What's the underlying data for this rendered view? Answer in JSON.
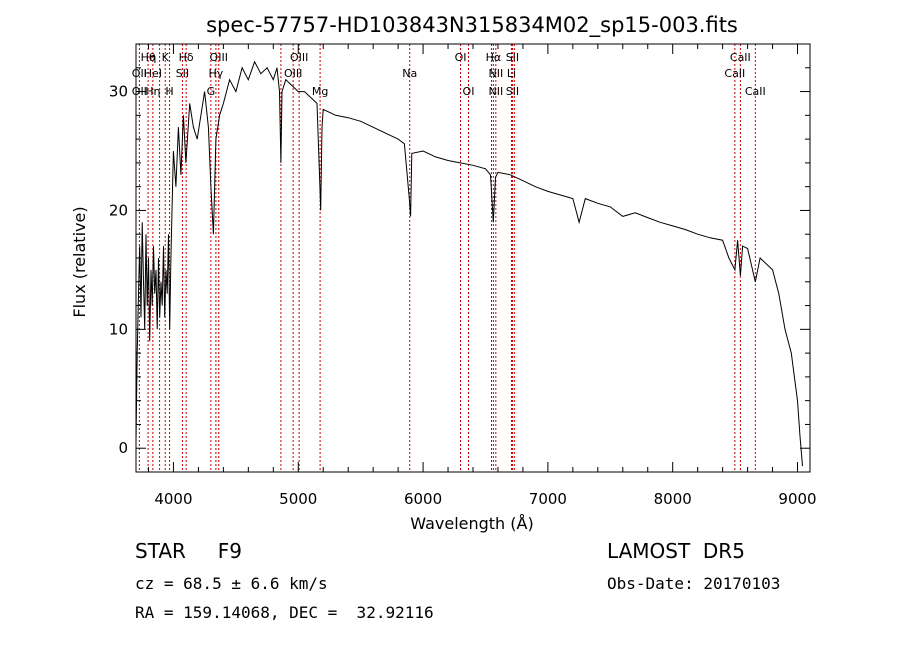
{
  "chart_data": {
    "type": "line",
    "title": "spec-57757-HD103843N315834M02_sp15-003.fits",
    "xlabel": "Wavelength (Å)",
    "ylabel": "Flux (relative)",
    "xlim": [
      3700,
      9100
    ],
    "ylim": [
      -2,
      34
    ],
    "xticks": [
      4000,
      5000,
      6000,
      7000,
      8000,
      9000
    ],
    "yticks": [
      0,
      10,
      20,
      30
    ],
    "line_color": "#000000",
    "marker_color": "#cc0000",
    "series": [
      {
        "values": [
          [
            3700,
            0.5
          ],
          [
            3710,
            8
          ],
          [
            3720,
            13
          ],
          [
            3730,
            17
          ],
          [
            3740,
            11
          ],
          [
            3750,
            19
          ],
          [
            3760,
            14
          ],
          [
            3770,
            10
          ],
          [
            3780,
            18
          ],
          [
            3790,
            12
          ],
          [
            3800,
            16
          ],
          [
            3810,
            9
          ],
          [
            3820,
            15
          ],
          [
            3830,
            12
          ],
          [
            3840,
            17
          ],
          [
            3850,
            13
          ],
          [
            3860,
            15
          ],
          [
            3870,
            10
          ],
          [
            3880,
            16
          ],
          [
            3890,
            11
          ],
          [
            3900,
            14
          ],
          [
            3910,
            12
          ],
          [
            3920,
            17
          ],
          [
            3930,
            11
          ],
          [
            3940,
            15
          ],
          [
            3950,
            13
          ],
          [
            3960,
            18
          ],
          [
            3970,
            10
          ],
          [
            3980,
            16
          ],
          [
            4000,
            25
          ],
          [
            4020,
            22
          ],
          [
            4040,
            27
          ],
          [
            4060,
            23
          ],
          [
            4080,
            28
          ],
          [
            4100,
            24
          ],
          [
            4130,
            29
          ],
          [
            4160,
            27
          ],
          [
            4190,
            26
          ],
          [
            4220,
            28
          ],
          [
            4250,
            30
          ],
          [
            4280,
            27
          ],
          [
            4300,
            22
          ],
          [
            4320,
            18
          ],
          [
            4340,
            26
          ],
          [
            4370,
            28
          ],
          [
            4400,
            29
          ],
          [
            4450,
            31
          ],
          [
            4500,
            30
          ],
          [
            4550,
            32
          ],
          [
            4600,
            31
          ],
          [
            4650,
            32.5
          ],
          [
            4700,
            31.5
          ],
          [
            4750,
            32
          ],
          [
            4800,
            31
          ],
          [
            4830,
            32
          ],
          [
            4850,
            30
          ],
          [
            4861,
            24
          ],
          [
            4870,
            30
          ],
          [
            4900,
            31
          ],
          [
            4950,
            30.5
          ],
          [
            5000,
            30
          ],
          [
            5050,
            30
          ],
          [
            5100,
            29.5
          ],
          [
            5150,
            29
          ],
          [
            5170,
            23
          ],
          [
            5180,
            20
          ],
          [
            5190,
            27
          ],
          [
            5200,
            28.5
          ],
          [
            5300,
            28
          ],
          [
            5400,
            27.8
          ],
          [
            5500,
            27.5
          ],
          [
            5600,
            27
          ],
          [
            5700,
            26.5
          ],
          [
            5800,
            26
          ],
          [
            5850,
            25.6
          ],
          [
            5890,
            21
          ],
          [
            5900,
            19.5
          ],
          [
            5910,
            24.8
          ],
          [
            6000,
            25
          ],
          [
            6100,
            24.5
          ],
          [
            6200,
            24.2
          ],
          [
            6300,
            24
          ],
          [
            6400,
            23.8
          ],
          [
            6500,
            23.5
          ],
          [
            6540,
            23
          ],
          [
            6563,
            19
          ],
          [
            6580,
            22.8
          ],
          [
            6600,
            23.2
          ],
          [
            6700,
            23
          ],
          [
            6800,
            22.5
          ],
          [
            6900,
            22
          ],
          [
            7000,
            21.6
          ],
          [
            7100,
            21.3
          ],
          [
            7200,
            21
          ],
          [
            7250,
            19
          ],
          [
            7300,
            21
          ],
          [
            7400,
            20.6
          ],
          [
            7500,
            20.3
          ],
          [
            7600,
            19.5
          ],
          [
            7700,
            19.8
          ],
          [
            7800,
            19.4
          ],
          [
            7900,
            19
          ],
          [
            8000,
            18.7
          ],
          [
            8100,
            18.4
          ],
          [
            8200,
            18
          ],
          [
            8300,
            17.7
          ],
          [
            8400,
            17.5
          ],
          [
            8450,
            16
          ],
          [
            8498,
            15
          ],
          [
            8520,
            17.5
          ],
          [
            8542,
            14.5
          ],
          [
            8560,
            17
          ],
          [
            8600,
            16.8
          ],
          [
            8662,
            14
          ],
          [
            8700,
            16
          ],
          [
            8800,
            15
          ],
          [
            8850,
            13
          ],
          [
            8900,
            10
          ],
          [
            8950,
            8
          ],
          [
            9000,
            4
          ],
          [
            9020,
            1
          ],
          [
            9040,
            -1.5
          ]
        ]
      }
    ],
    "lines": [
      {
        "wave": 3727,
        "labels": [
          "",
          "OII",
          "OII"
        ]
      },
      {
        "wave": 3797,
        "labels": [
          "Hθ",
          "",
          ""
        ]
      },
      {
        "wave": 3835,
        "labels": [
          "η",
          "HeI",
          "Hη"
        ]
      },
      {
        "wave": 3889,
        "labels": [
          "",
          "",
          ""
        ]
      },
      {
        "wave": 3934,
        "labels": [
          "K",
          "",
          ""
        ]
      },
      {
        "wave": 3969,
        "labels": [
          "",
          "",
          "H"
        ]
      },
      {
        "wave": 4072,
        "labels": [
          "",
          "SII",
          ""
        ]
      },
      {
        "wave": 4102,
        "labels": [
          "Hδ",
          "",
          ""
        ]
      },
      {
        "wave": 4300,
        "labels": [
          "",
          "",
          "G"
        ]
      },
      {
        "wave": 4340,
        "labels": [
          "",
          "Hγ",
          ""
        ]
      },
      {
        "wave": 4363,
        "labels": [
          "OIII",
          "",
          ""
        ]
      },
      {
        "wave": 4861,
        "labels": [
          "",
          "",
          ""
        ]
      },
      {
        "wave": 4959,
        "labels": [
          "",
          "OIII",
          ""
        ]
      },
      {
        "wave": 5007,
        "labels": [
          "OIII",
          "",
          ""
        ]
      },
      {
        "wave": 5175,
        "labels": [
          "",
          "",
          "Mg"
        ]
      },
      {
        "wave": 5893,
        "labels": [
          "",
          "Na",
          ""
        ]
      },
      {
        "wave": 6300,
        "labels": [
          "OI",
          "",
          ""
        ]
      },
      {
        "wave": 6364,
        "labels": [
          "",
          "",
          "OI"
        ]
      },
      {
        "wave": 6548,
        "labels": [
          "",
          "",
          ""
        ]
      },
      {
        "wave": 6563,
        "labels": [
          "Hα",
          "",
          ""
        ]
      },
      {
        "wave": 6583,
        "labels": [
          "",
          "NII",
          "NII"
        ]
      },
      {
        "wave": 6708,
        "labels": [
          "",
          "Li",
          ""
        ]
      },
      {
        "wave": 6716,
        "labels": [
          "SII",
          "",
          "SII"
        ]
      },
      {
        "wave": 6731,
        "labels": [
          "",
          "",
          ""
        ]
      },
      {
        "wave": 8498,
        "labels": [
          "",
          "CaII",
          ""
        ]
      },
      {
        "wave": 8542,
        "labels": [
          "CaII",
          "",
          ""
        ]
      },
      {
        "wave": 8662,
        "labels": [
          "",
          "",
          "CaII"
        ]
      }
    ]
  },
  "footer": {
    "object_type": "STAR     F9",
    "survey": "LAMOST  DR5",
    "cz": "cz = 68.5 ± 6.6 km/s",
    "obs_date": "Obs-Date: 20170103",
    "coords": "RA = 159.14068, DEC =  32.92116"
  }
}
